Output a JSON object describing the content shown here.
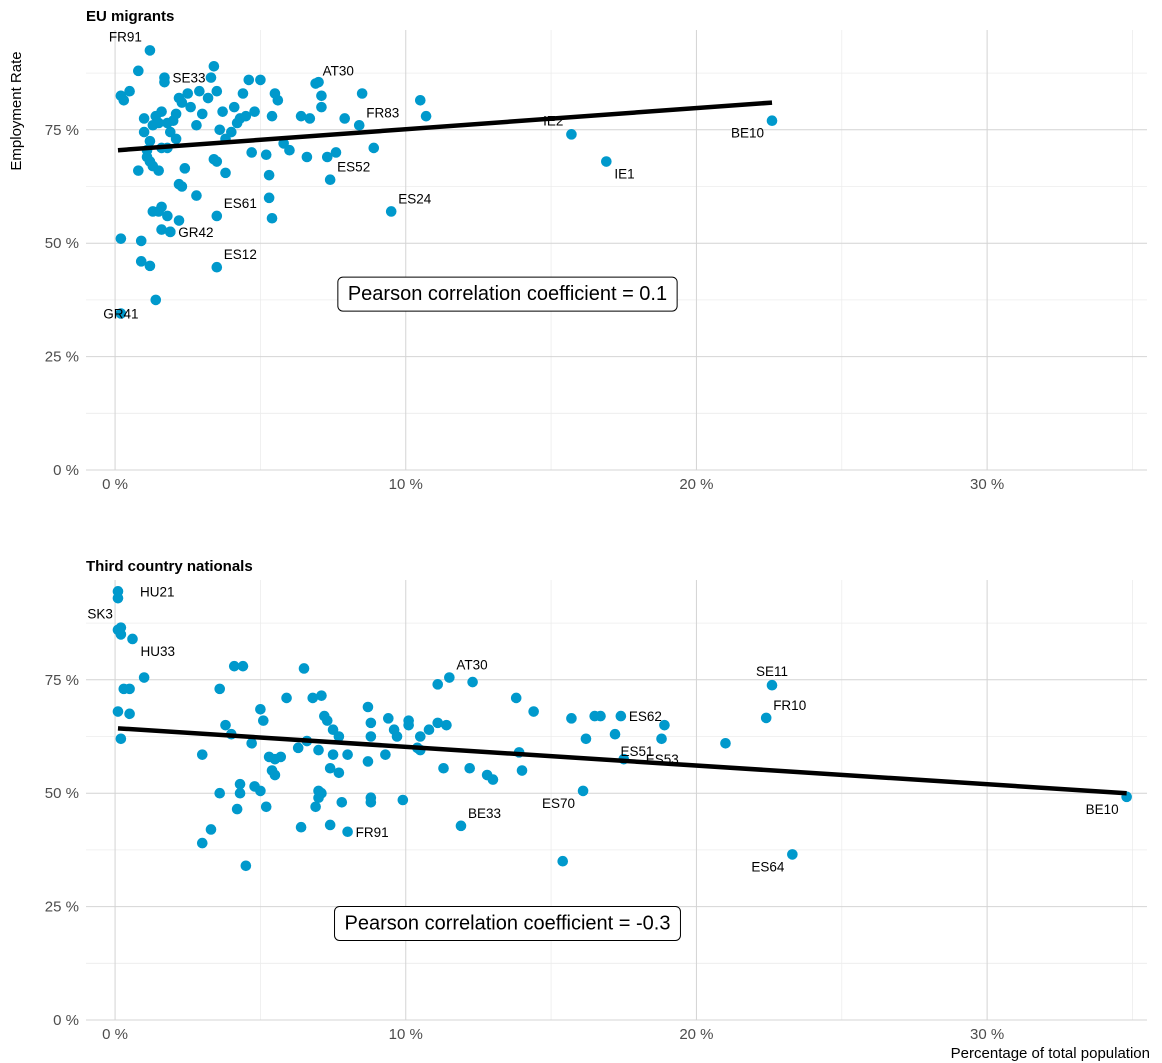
{
  "chart_data": [
    {
      "type": "scatter",
      "title": "EU migrants",
      "ylabel": "Employment Rate",
      "xlabel": "",
      "xlim": [
        -0.01,
        0.355
      ],
      "ylim": [
        0,
        0.97
      ],
      "x_ticks": [
        0,
        0.1,
        0.2,
        0.3
      ],
      "y_ticks": [
        0,
        0.25,
        0.5,
        0.75
      ],
      "grid": true,
      "trend_line": {
        "x": [
          0.001,
          0.226
        ],
        "y": [
          0.705,
          0.81
        ]
      },
      "annotation": "Pearson correlation coefficient = 0.1",
      "annotation_at": {
        "x": 0.135,
        "y": 0.39
      },
      "labeled_points": [
        {
          "label": "FR91",
          "x": 0.012,
          "y": 0.925,
          "pos": "left-up"
        },
        {
          "label": "SE33",
          "x": 0.017,
          "y": 0.865,
          "pos": "right"
        },
        {
          "label": "AT30",
          "x": 0.069,
          "y": 0.852,
          "pos": "right-up"
        },
        {
          "label": "FR83",
          "x": 0.084,
          "y": 0.76,
          "pos": "right-up"
        },
        {
          "label": "ES52",
          "x": 0.074,
          "y": 0.64,
          "pos": "right-up"
        },
        {
          "label": "ES24",
          "x": 0.095,
          "y": 0.57,
          "pos": "right-up"
        },
        {
          "label": "ES61",
          "x": 0.035,
          "y": 0.56,
          "pos": "right-up"
        },
        {
          "label": "GR42",
          "x": 0.019,
          "y": 0.525,
          "pos": "right"
        },
        {
          "label": "ES12",
          "x": 0.035,
          "y": 0.447,
          "pos": "right-up"
        },
        {
          "label": "GR41",
          "x": 0.002,
          "y": 0.345,
          "pos": "center"
        },
        {
          "label": "IE2",
          "x": 0.157,
          "y": 0.74,
          "pos": "left-up"
        },
        {
          "label": "IE1",
          "x": 0.169,
          "y": 0.68,
          "pos": "right-down"
        },
        {
          "label": "BE10",
          "x": 0.226,
          "y": 0.77,
          "pos": "left-down"
        }
      ],
      "points": [
        [
          0.002,
          0.825
        ],
        [
          0.003,
          0.815
        ],
        [
          0.005,
          0.835
        ],
        [
          0.008,
          0.88
        ],
        [
          0.01,
          0.775
        ],
        [
          0.01,
          0.745
        ],
        [
          0.011,
          0.705
        ],
        [
          0.012,
          0.725
        ],
        [
          0.013,
          0.76
        ],
        [
          0.014,
          0.78
        ],
        [
          0.015,
          0.765
        ],
        [
          0.016,
          0.79
        ],
        [
          0.017,
          0.855
        ],
        [
          0.018,
          0.765
        ],
        [
          0.019,
          0.745
        ],
        [
          0.02,
          0.77
        ],
        [
          0.021,
          0.785
        ],
        [
          0.022,
          0.82
        ],
        [
          0.023,
          0.81
        ],
        [
          0.025,
          0.83
        ],
        [
          0.026,
          0.8
        ],
        [
          0.028,
          0.76
        ],
        [
          0.029,
          0.835
        ],
        [
          0.03,
          0.785
        ],
        [
          0.032,
          0.82
        ],
        [
          0.033,
          0.865
        ],
        [
          0.034,
          0.89
        ],
        [
          0.035,
          0.835
        ],
        [
          0.036,
          0.75
        ],
        [
          0.037,
          0.79
        ],
        [
          0.038,
          0.73
        ],
        [
          0.04,
          0.745
        ],
        [
          0.041,
          0.8
        ],
        [
          0.042,
          0.765
        ],
        [
          0.043,
          0.775
        ],
        [
          0.044,
          0.83
        ],
        [
          0.045,
          0.78
        ],
        [
          0.046,
          0.86
        ],
        [
          0.047,
          0.7
        ],
        [
          0.048,
          0.79
        ],
        [
          0.05,
          0.86
        ],
        [
          0.052,
          0.695
        ],
        [
          0.053,
          0.65
        ],
        [
          0.054,
          0.78
        ],
        [
          0.055,
          0.83
        ],
        [
          0.056,
          0.815
        ],
        [
          0.058,
          0.72
        ],
        [
          0.06,
          0.705
        ],
        [
          0.064,
          0.78
        ],
        [
          0.066,
          0.69
        ],
        [
          0.067,
          0.775
        ],
        [
          0.07,
          0.855
        ],
        [
          0.071,
          0.825
        ],
        [
          0.071,
          0.8
        ],
        [
          0.073,
          0.69
        ],
        [
          0.076,
          0.7
        ],
        [
          0.079,
          0.775
        ],
        [
          0.085,
          0.83
        ],
        [
          0.089,
          0.71
        ],
        [
          0.105,
          0.815
        ],
        [
          0.107,
          0.78
        ],
        [
          0.008,
          0.66
        ],
        [
          0.011,
          0.69
        ],
        [
          0.012,
          0.68
        ],
        [
          0.013,
          0.67
        ],
        [
          0.015,
          0.66
        ],
        [
          0.016,
          0.71
        ],
        [
          0.018,
          0.71
        ],
        [
          0.021,
          0.73
        ],
        [
          0.022,
          0.63
        ],
        [
          0.023,
          0.625
        ],
        [
          0.024,
          0.665
        ],
        [
          0.028,
          0.605
        ],
        [
          0.034,
          0.685
        ],
        [
          0.035,
          0.68
        ],
        [
          0.038,
          0.655
        ],
        [
          0.053,
          0.6
        ],
        [
          0.013,
          0.57
        ],
        [
          0.015,
          0.57
        ],
        [
          0.016,
          0.53
        ],
        [
          0.016,
          0.58
        ],
        [
          0.018,
          0.56
        ],
        [
          0.019,
          0.525
        ],
        [
          0.022,
          0.55
        ],
        [
          0.002,
          0.51
        ],
        [
          0.009,
          0.505
        ],
        [
          0.009,
          0.46
        ],
        [
          0.012,
          0.45
        ],
        [
          0.014,
          0.375
        ],
        [
          0.054,
          0.555
        ]
      ]
    },
    {
      "type": "scatter",
      "title": "Third country nationals",
      "xlabel": "Percentage of total population",
      "ylabel": "",
      "xlim": [
        -0.01,
        0.355
      ],
      "ylim": [
        0,
        0.97
      ],
      "x_ticks": [
        0,
        0.1,
        0.2,
        0.3
      ],
      "y_ticks": [
        0,
        0.25,
        0.5,
        0.75
      ],
      "grid": true,
      "trend_line": {
        "x": [
          0.001,
          0.348
        ],
        "y": [
          0.643,
          0.5
        ]
      },
      "annotation": "Pearson correlation coefficient = -0.3",
      "annotation_at": {
        "x": 0.135,
        "y": 0.215
      },
      "labeled_points": [
        {
          "label": "HU21",
          "x": 0.001,
          "y": 0.945,
          "pos": "right-far"
        },
        {
          "label": "SK3",
          "x": 0.002,
          "y": 0.865,
          "pos": "left-up"
        },
        {
          "label": "HU33",
          "x": 0.006,
          "y": 0.84,
          "pos": "right-down"
        },
        {
          "label": "AT30",
          "x": 0.115,
          "y": 0.755,
          "pos": "right-up"
        },
        {
          "label": "SE11",
          "x": 0.226,
          "y": 0.738,
          "pos": "up"
        },
        {
          "label": "FR10",
          "x": 0.224,
          "y": 0.666,
          "pos": "right-up"
        },
        {
          "label": "ES62",
          "x": 0.174,
          "y": 0.67,
          "pos": "right"
        },
        {
          "label": "ES51",
          "x": 0.188,
          "y": 0.62,
          "pos": "left-down"
        },
        {
          "label": "ES53",
          "x": 0.175,
          "y": 0.575,
          "pos": "right-far"
        },
        {
          "label": "ES70",
          "x": 0.161,
          "y": 0.505,
          "pos": "left-down"
        },
        {
          "label": "BE33",
          "x": 0.119,
          "y": 0.428,
          "pos": "right-up"
        },
        {
          "label": "FR91",
          "x": 0.08,
          "y": 0.415,
          "pos": "right"
        },
        {
          "label": "ES64",
          "x": 0.233,
          "y": 0.365,
          "pos": "left-down"
        },
        {
          "label": "BE10",
          "x": 0.348,
          "y": 0.492,
          "pos": "left-down"
        }
      ],
      "points": [
        [
          0.001,
          0.93
        ],
        [
          0.002,
          0.85
        ],
        [
          0.001,
          0.68
        ],
        [
          0.002,
          0.62
        ],
        [
          0.003,
          0.73
        ],
        [
          0.005,
          0.73
        ],
        [
          0.005,
          0.675
        ],
        [
          0.01,
          0.755
        ],
        [
          0.03,
          0.585
        ],
        [
          0.033,
          0.42
        ],
        [
          0.036,
          0.73
        ],
        [
          0.036,
          0.5
        ],
        [
          0.038,
          0.65
        ],
        [
          0.04,
          0.63
        ],
        [
          0.041,
          0.78
        ],
        [
          0.042,
          0.465
        ],
        [
          0.043,
          0.52
        ],
        [
          0.043,
          0.5
        ],
        [
          0.044,
          0.78
        ],
        [
          0.045,
          0.34
        ],
        [
          0.047,
          0.61
        ],
        [
          0.048,
          0.515
        ],
        [
          0.05,
          0.685
        ],
        [
          0.05,
          0.505
        ],
        [
          0.051,
          0.66
        ],
        [
          0.052,
          0.47
        ],
        [
          0.053,
          0.58
        ],
        [
          0.054,
          0.55
        ],
        [
          0.055,
          0.54
        ],
        [
          0.055,
          0.575
        ],
        [
          0.057,
          0.58
        ],
        [
          0.059,
          0.71
        ],
        [
          0.063,
          0.6
        ],
        [
          0.064,
          0.425
        ],
        [
          0.065,
          0.775
        ],
        [
          0.066,
          0.615
        ],
        [
          0.068,
          0.71
        ],
        [
          0.069,
          0.47
        ],
        [
          0.07,
          0.595
        ],
        [
          0.07,
          0.505
        ],
        [
          0.07,
          0.49
        ],
        [
          0.071,
          0.715
        ],
        [
          0.071,
          0.5
        ],
        [
          0.072,
          0.67
        ],
        [
          0.073,
          0.66
        ],
        [
          0.074,
          0.43
        ],
        [
          0.074,
          0.555
        ],
        [
          0.075,
          0.64
        ],
        [
          0.075,
          0.585
        ],
        [
          0.077,
          0.625
        ],
        [
          0.077,
          0.545
        ],
        [
          0.078,
          0.48
        ],
        [
          0.08,
          0.585
        ],
        [
          0.087,
          0.69
        ],
        [
          0.087,
          0.57
        ],
        [
          0.088,
          0.655
        ],
        [
          0.088,
          0.625
        ],
        [
          0.088,
          0.49
        ],
        [
          0.088,
          0.48
        ],
        [
          0.093,
          0.585
        ],
        [
          0.094,
          0.665
        ],
        [
          0.096,
          0.64
        ],
        [
          0.097,
          0.625
        ],
        [
          0.099,
          0.485
        ],
        [
          0.101,
          0.66
        ],
        [
          0.101,
          0.65
        ],
        [
          0.104,
          0.6
        ],
        [
          0.105,
          0.595
        ],
        [
          0.105,
          0.625
        ],
        [
          0.108,
          0.64
        ],
        [
          0.111,
          0.74
        ],
        [
          0.111,
          0.655
        ],
        [
          0.113,
          0.555
        ],
        [
          0.114,
          0.65
        ],
        [
          0.122,
          0.555
        ],
        [
          0.123,
          0.745
        ],
        [
          0.128,
          0.54
        ],
        [
          0.13,
          0.53
        ],
        [
          0.138,
          0.71
        ],
        [
          0.139,
          0.59
        ],
        [
          0.14,
          0.55
        ],
        [
          0.144,
          0.68
        ],
        [
          0.154,
          0.35
        ],
        [
          0.157,
          0.665
        ],
        [
          0.162,
          0.62
        ],
        [
          0.165,
          0.67
        ],
        [
          0.167,
          0.67
        ],
        [
          0.172,
          0.63
        ],
        [
          0.189,
          0.65
        ],
        [
          0.21,
          0.61
        ],
        [
          0.03,
          0.39
        ],
        [
          0.001,
          0.86
        ]
      ]
    }
  ]
}
